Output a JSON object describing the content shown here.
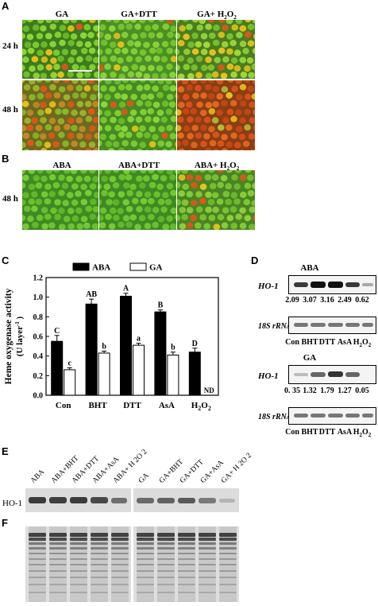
{
  "panels": {
    "A": "A",
    "B": "B",
    "C": "C",
    "D": "D",
    "E": "E",
    "F": "F"
  },
  "panelA": {
    "columns": [
      "GA",
      "GA+DTT",
      "GA+ H2O2"
    ],
    "rows": [
      "24 h",
      "48 h"
    ]
  },
  "panelB": {
    "columns": [
      "ABA",
      "ABA+DTT",
      "ABA+ H2O2"
    ],
    "rows": [
      "48 h"
    ]
  },
  "colors": {
    "cell_green": "#7fd12f",
    "wall_green": "#3e7a1c",
    "red_orange": "#e0561c",
    "yellow": "#e8c21e",
    "bar_black": "#000000",
    "bar_white": "#ffffff"
  },
  "chart_data": {
    "type": "bar",
    "ylabel_line1": "Heme oxygenase activity",
    "ylabel_line2": "(U layer",
    "ylabel_sup": "-1",
    "ylabel_close": ")",
    "ylim": [
      0,
      1.2
    ],
    "yticks": [
      "0.0",
      "0.2",
      "0.4",
      "0.6",
      "0.8",
      "1.0",
      "1.2"
    ],
    "categories": [
      "Con",
      "BHT",
      "DTT",
      "AsA",
      "H2O2"
    ],
    "legend": [
      "ABA",
      "GA"
    ],
    "series": [
      {
        "name": "ABA",
        "values": [
          0.55,
          0.93,
          1.01,
          0.85,
          0.44
        ],
        "errors": [
          0.06,
          0.05,
          0.03,
          0.02,
          0.04
        ],
        "letters": [
          "C",
          "AB",
          "A",
          "B",
          "D"
        ]
      },
      {
        "name": "GA",
        "values": [
          0.26,
          0.43,
          0.51,
          0.41,
          0.0
        ],
        "errors": [
          0.02,
          0.02,
          0.02,
          0.03,
          0.0
        ],
        "letters": [
          "c",
          "b",
          "a",
          "b",
          "ND"
        ]
      }
    ]
  },
  "panelD": {
    "aba_title": "ABA",
    "ga_title": "GA",
    "gene": "HO-1",
    "control": "18S rRNA",
    "aba_values": [
      "2.09",
      "3.07",
      "3.16",
      "2.49",
      "0.62"
    ],
    "ga_values": [
      "0. 35",
      "1.32",
      "1.79",
      "1.27",
      "0.05"
    ],
    "lanes": [
      "Con",
      "BHT",
      "DTT",
      "AsA",
      "H2O2"
    ]
  },
  "panelE": {
    "band_label": "HO-1",
    "lanes_left": [
      "ABA",
      "ABA+BHT",
      "ABA+DTT",
      "ABA+AsA",
      "ABA+ H 2O 2"
    ],
    "lanes_right": [
      "GA",
      "GA+BHT",
      "GA+DTT",
      "GA+AsA",
      "GA+ H 2O 2"
    ]
  }
}
